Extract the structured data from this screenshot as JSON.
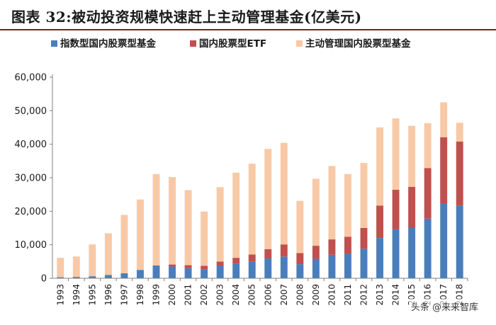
{
  "title": "图表 32:被动投资规模快速赶上主动管理基金(亿美元)",
  "watermark": "头条 @来来智库",
  "colors": {
    "index": "#4a7ebb",
    "etf": "#c0504d",
    "active": "#f8c9a6",
    "axis": "#808080",
    "text": "#1a1a1a"
  },
  "chart_data": {
    "type": "bar",
    "stacked": true,
    "title": "被动投资规模快速赶上主动管理基金(亿美元)",
    "xlabel": "",
    "ylabel": "",
    "ylim": [
      0,
      60000
    ],
    "yticks": [
      "0",
      "10,000",
      "20,000",
      "30,000",
      "40,000",
      "50,000",
      "60,000"
    ],
    "ytick_values": [
      0,
      10000,
      20000,
      30000,
      40000,
      50000,
      60000
    ],
    "legend_position": "top-left",
    "categories": [
      "1993",
      "1994",
      "1995",
      "1996",
      "1997",
      "1998",
      "1999",
      "2000",
      "2001",
      "2002",
      "2003",
      "2004",
      "2005",
      "2006",
      "2007",
      "2008",
      "2009",
      "2010",
      "2011",
      "2012",
      "2013",
      "2014",
      "2015",
      "2016",
      "2017",
      "2018"
    ],
    "series": [
      {
        "name": "指数型国内股票型基金",
        "color": "index",
        "values": [
          300,
          400,
          600,
          1000,
          1500,
          2500,
          3800,
          3500,
          3000,
          2700,
          3800,
          4300,
          5000,
          5900,
          6500,
          4200,
          5800,
          7000,
          7300,
          8800,
          12000,
          14600,
          15000,
          17800,
          22300,
          21600
        ]
      },
      {
        "name": "国内股票型ETF",
        "color": "etf",
        "values": [
          0,
          0,
          0,
          0,
          0,
          0,
          0,
          600,
          900,
          1000,
          1200,
          1800,
          2100,
          2800,
          3600,
          3300,
          3900,
          4600,
          5100,
          6200,
          9700,
          11800,
          12300,
          15100,
          19800,
          19200
        ]
      },
      {
        "name": "主动管理国内股票型基金",
        "color": "active",
        "values": [
          5800,
          6100,
          9500,
          12400,
          17400,
          21000,
          27300,
          26100,
          22400,
          16200,
          22200,
          25400,
          27100,
          29900,
          30300,
          15600,
          20000,
          21900,
          18700,
          19400,
          23300,
          21300,
          18200,
          13400,
          10400,
          5600
        ]
      }
    ]
  }
}
